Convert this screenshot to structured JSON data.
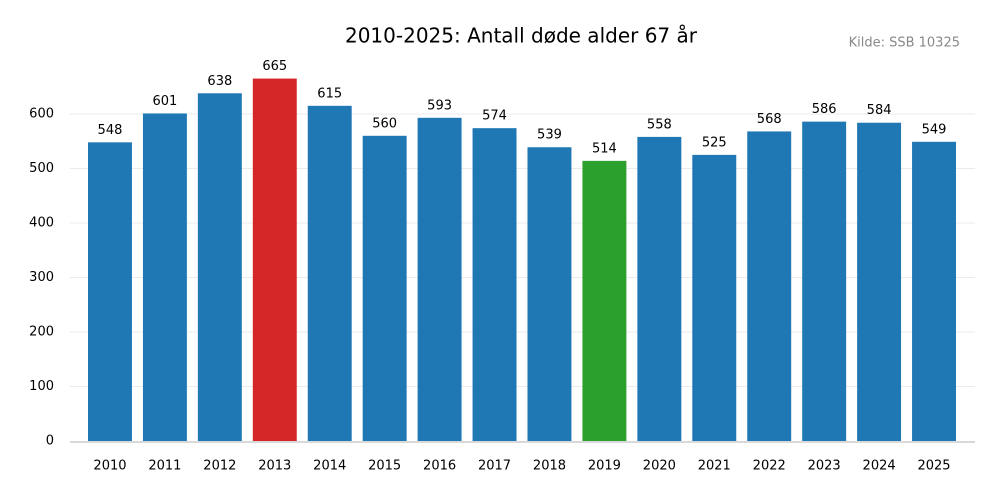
{
  "chart_data": {
    "type": "bar",
    "title": "2010-2025: Antall døde alder 67 år",
    "source": "Kilde: SSB 10325",
    "categories": [
      "2010",
      "2011",
      "2012",
      "2013",
      "2014",
      "2015",
      "2016",
      "2017",
      "2018",
      "2019",
      "2020",
      "2021",
      "2022",
      "2023",
      "2024",
      "2025"
    ],
    "values": [
      548,
      601,
      638,
      665,
      615,
      560,
      593,
      574,
      539,
      514,
      558,
      525,
      568,
      586,
      584,
      549
    ],
    "colors": [
      "#1f77b4",
      "#1f77b4",
      "#1f77b4",
      "#d62728",
      "#1f77b4",
      "#1f77b4",
      "#1f77b4",
      "#1f77b4",
      "#1f77b4",
      "#2ca02c",
      "#1f77b4",
      "#1f77b4",
      "#1f77b4",
      "#1f77b4",
      "#1f77b4",
      "#1f77b4"
    ],
    "ylim": [
      0,
      700
    ],
    "yticks": [
      0,
      100,
      200,
      300,
      400,
      500,
      600
    ],
    "grid": true
  }
}
